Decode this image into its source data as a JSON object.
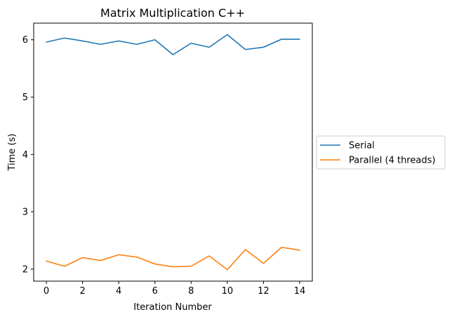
{
  "chart_data": {
    "type": "line",
    "title": "Matrix Multiplication C++",
    "xlabel": "Iteration Number",
    "ylabel": "Time (s)",
    "x": [
      0,
      1,
      2,
      3,
      4,
      5,
      6,
      7,
      8,
      9,
      10,
      11,
      12,
      13,
      14
    ],
    "xlim": [
      -0.7,
      14.7
    ],
    "ylim": [
      1.79,
      6.29
    ],
    "xticks": [
      0,
      2,
      4,
      6,
      8,
      10,
      12,
      14
    ],
    "yticks": [
      2,
      3,
      4,
      5,
      6
    ],
    "grid": false,
    "legend_position": "center-right, outside plot",
    "series": [
      {
        "name": "Serial",
        "color": "#1f77b4",
        "values": [
          5.96,
          6.03,
          5.98,
          5.92,
          5.98,
          5.92,
          6.0,
          5.74,
          5.94,
          5.87,
          6.09,
          5.83,
          5.87,
          6.01,
          6.01
        ]
      },
      {
        "name": "Parallel (4 threads)",
        "color": "#ff7f0e",
        "values": [
          2.14,
          2.05,
          2.2,
          2.15,
          2.25,
          2.21,
          2.09,
          2.04,
          2.05,
          2.23,
          1.99,
          2.34,
          2.1,
          2.38,
          2.33
        ]
      }
    ]
  }
}
